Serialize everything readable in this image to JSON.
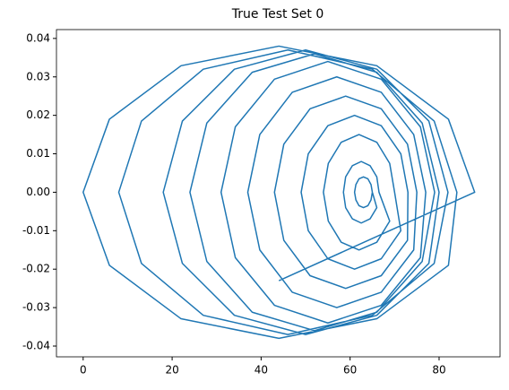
{
  "chart_data": {
    "type": "line",
    "title": "True Test Set 0",
    "color": "#1f77b4",
    "x": [
      44,
      88,
      82.1,
      66,
      44,
      22,
      5.9,
      0,
      5.9,
      22,
      44,
      66,
      82.1,
      84,
      78.9,
      65,
      46,
      27,
      13.1,
      8,
      13.1,
      27,
      46,
      65,
      78.9,
      82,
      77.7,
      66,
      50,
      34,
      22.3,
      18,
      22.3,
      34,
      50,
      66,
      77.7,
      80,
      76.2,
      66,
      52,
      38,
      27.8,
      24,
      27.8,
      38,
      52,
      66,
      76.2,
      79,
      75.8,
      67,
      55,
      43,
      34.2,
      31,
      34.2,
      43,
      55,
      67,
      75.8,
      77,
      74.3,
      67,
      57,
      47,
      39.7,
      37,
      39.7,
      47,
      57,
      67,
      74.3,
      75,
      72.9,
      67,
      59,
      51,
      45.1,
      43,
      45.1,
      51,
      59,
      67,
      72.9,
      73,
      71.4,
      67,
      61,
      55,
      50.6,
      49,
      50.6,
      55,
      61,
      67,
      71.4,
      70,
      68.9,
      66,
      62,
      58,
      55.1,
      54,
      55.1,
      58,
      62,
      66,
      68.9,
      66.5,
      66,
      64.5,
      62.5,
      60.5,
      59,
      58.5,
      59,
      60.5,
      62.5,
      64.5,
      66,
      65,
      64.7,
      64,
      63,
      62,
      61.3,
      61,
      61.3,
      62,
      63,
      64,
      64.7,
      65
    ],
    "values": [
      -0.023,
      0,
      0.019,
      0.0329,
      0.038,
      0.0329,
      0.019,
      0,
      -0.019,
      -0.0329,
      -0.038,
      -0.0329,
      -0.019,
      0,
      0.0185,
      0.032,
      0.037,
      0.032,
      0.0185,
      0,
      -0.0185,
      -0.032,
      -0.037,
      -0.032,
      -0.0185,
      0,
      0.0185,
      0.032,
      0.037,
      0.032,
      0.0185,
      0,
      -0.0185,
      -0.032,
      -0.037,
      -0.032,
      -0.0185,
      0,
      0.018,
      0.0312,
      0.036,
      0.0312,
      0.018,
      0,
      -0.018,
      -0.0312,
      -0.036,
      -0.0312,
      -0.018,
      0,
      0.017,
      0.0294,
      0.034,
      0.0294,
      0.017,
      0,
      -0.017,
      -0.0294,
      -0.034,
      -0.0294,
      -0.017,
      0,
      0.015,
      0.026,
      0.03,
      0.026,
      0.015,
      0,
      -0.015,
      -0.026,
      -0.03,
      -0.026,
      -0.015,
      0,
      0.0125,
      0.0217,
      0.025,
      0.0217,
      0.0125,
      0,
      -0.0125,
      -0.0217,
      -0.025,
      -0.0217,
      -0.0125,
      0,
      0.01,
      0.0173,
      0.02,
      0.0173,
      0.01,
      0,
      -0.01,
      -0.0173,
      -0.02,
      -0.0173,
      -0.01,
      0,
      0.0075,
      0.013,
      0.015,
      0.013,
      0.0075,
      0,
      -0.0075,
      -0.013,
      -0.015,
      -0.013,
      -0.0075,
      0,
      0.004,
      0.0069,
      0.008,
      0.0069,
      0.004,
      0,
      -0.004,
      -0.0069,
      -0.008,
      -0.0069,
      -0.004,
      0,
      0.002,
      0.0035,
      0.004,
      0.0035,
      0.002,
      0,
      -0.002,
      -0.0035,
      -0.004,
      -0.0035,
      -0.002,
      0
    ],
    "xlim": [
      -6,
      93.7
    ],
    "xticks": [
      0,
      20,
      40,
      60,
      80
    ],
    "ylim": [
      -0.0428,
      0.0423
    ],
    "yticks": [
      -0.04,
      -0.03,
      -0.02,
      -0.01,
      {
        "value": 0,
        "label": "0.00"
      },
      0.01,
      0.02,
      0.03,
      0.04
    ]
  }
}
